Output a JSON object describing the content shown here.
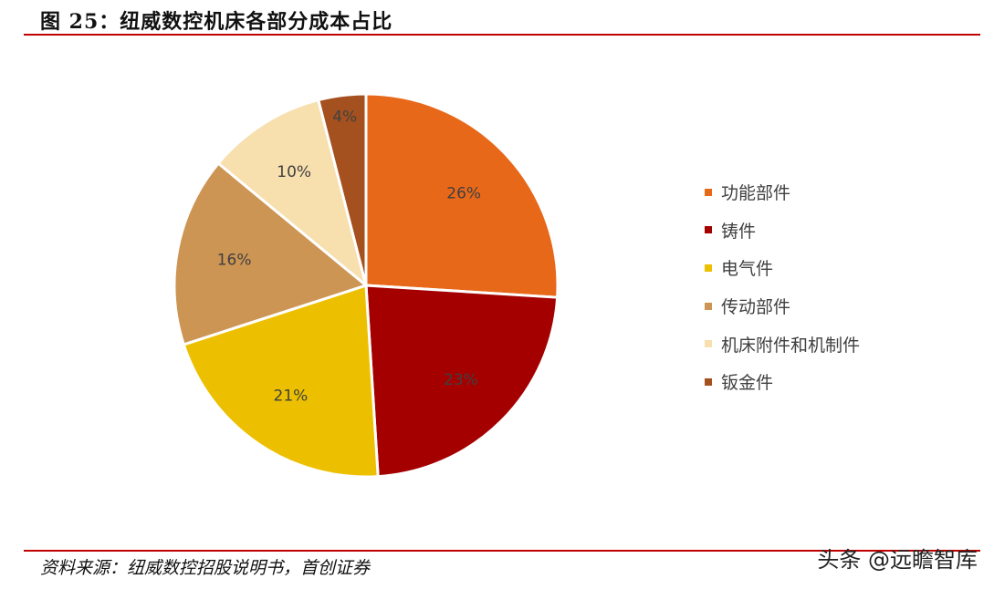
{
  "figure": {
    "title": "图 25：纽威数控机床各部分成本占比",
    "source": "资料来源：纽威数控招股说明书，首创证券",
    "watermark": "头条 @远瞻智库"
  },
  "chart_data": {
    "type": "pie",
    "title": "",
    "start_angle_deg": 0,
    "direction": "clockwise",
    "legend_position": "right",
    "slices": [
      {
        "name": "功能部件",
        "value": 26,
        "label": "26%",
        "color": "#e8681a",
        "label_color": "#404040"
      },
      {
        "name": "铸件",
        "value": 23,
        "label": "23%",
        "color": "#a50000",
        "label_color": "#404040"
      },
      {
        "name": "电气件",
        "value": 21,
        "label": "21%",
        "color": "#ecc000",
        "label_color": "#404040"
      },
      {
        "name": "传动部件",
        "value": 16,
        "label": "16%",
        "color": "#cd9553",
        "label_color": "#404040"
      },
      {
        "name": "机床附件和机制件",
        "value": 10,
        "label": "10%",
        "color": "#f7dfae",
        "label_color": "#404040"
      },
      {
        "name": "钣金件",
        "value": 4,
        "label": "4%",
        "color": "#a5511f",
        "label_color": "#404040"
      }
    ]
  }
}
